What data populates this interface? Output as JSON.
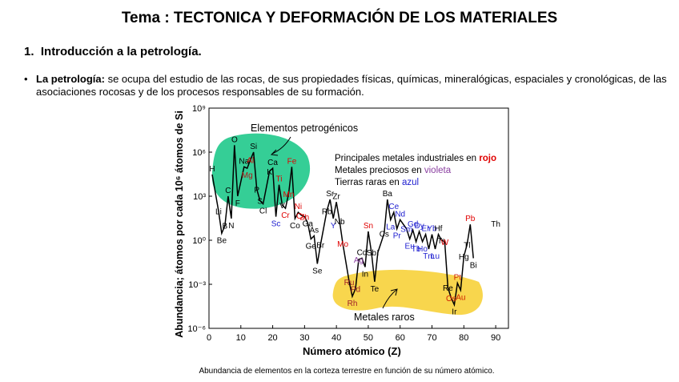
{
  "header": {
    "title": "Tema : TECTONICA Y DEFORMACIÓN DE LOS MATERIALES"
  },
  "section": {
    "number": "1.",
    "heading": "Introducción a la petrología."
  },
  "bullet": {
    "term": "La petrología:",
    "text": "se ocupa del estudio de las rocas, de sus propiedades físicas, químicas, mineralógicas, espaciales y cronológicas, de las asociaciones rocosas y de los procesos responsables de su formación."
  },
  "chart_data": {
    "type": "line",
    "x_label": "Número atómico (Z)",
    "y_label": "Abundancia; átomos por cada 10⁶ átomos de Si",
    "log_y": true,
    "xlim": [
      0,
      94
    ],
    "xticks": [
      0,
      10,
      20,
      30,
      40,
      50,
      60,
      70,
      80,
      90
    ],
    "ylim": [
      1e-06,
      1000000000.0
    ],
    "yticks": [
      {
        "value": 1e-06,
        "label": "10⁻⁶"
      },
      {
        "value": 0.001,
        "label": "10⁻³"
      },
      {
        "value": 1,
        "label": "10⁰"
      },
      {
        "value": 1000.0,
        "label": "10³"
      },
      {
        "value": 1000000.0,
        "label": "10⁶"
      },
      {
        "value": 1000000000.0,
        "label": "10⁹"
      }
    ],
    "line_color": "#000000",
    "x": [
      1,
      3,
      4,
      5,
      6,
      7,
      8,
      9,
      11,
      12,
      13,
      14,
      15,
      16,
      17,
      19,
      20,
      21,
      22,
      23,
      24,
      25,
      26,
      27,
      28,
      29,
      30,
      31,
      32,
      33,
      34,
      35,
      37,
      38,
      39,
      40,
      41,
      42,
      44,
      45,
      46,
      47,
      48,
      49,
      50,
      51,
      52,
      53,
      55,
      56,
      57,
      58,
      59,
      60,
      62,
      63,
      64,
      65,
      66,
      67,
      68,
      69,
      70,
      71,
      72,
      73,
      74,
      75,
      76,
      77,
      78,
      79,
      80,
      81,
      82,
      83,
      84,
      90
    ],
    "values": [
      30000.0,
      100,
      3,
      10,
      1000,
      30,
      3000000.0,
      1000,
      100000.0,
      80000.0,
      300000.0,
      1000000.0,
      3000,
      500,
      300,
      50000.0,
      80000.0,
      40,
      6000,
      250,
      150,
      1500,
      100000.0,
      30,
      80,
      50,
      40,
      15,
      1.2,
      2,
      0.025,
      0.5,
      100,
      600,
      30,
      400,
      20,
      0.6,
      0.0015,
      0.00015,
      0.0005,
      0.05,
      0.06,
      0.015,
      4,
      0.15,
      0.0015,
      0.15,
      3,
      600,
      25,
      80,
      6,
      25,
      6,
      1.2,
      5,
      0.8,
      4,
      0.8,
      2.5,
      0.25,
      2.5,
      0.25,
      2.5,
      1,
      0.8,
      0.0006,
      0.00012,
      4e-05,
      0.0012,
      0.0004,
      0.08,
      0.5,
      12,
      0.06,
      null,
      5
    ],
    "labels": [
      "H",
      "Li",
      "Be",
      "B",
      "C",
      "N",
      "O",
      "F",
      "Na",
      "Mg",
      "Al",
      "Si",
      "P",
      "S",
      "Cl",
      "K",
      "Ca",
      "Sc",
      "Ti",
      "V",
      "Cr",
      "Mn",
      "Fe",
      "Co",
      "Ni",
      "Cu",
      "Zn",
      "Ga",
      "Ge",
      "As",
      "Se",
      "Br",
      "Rb",
      "Sr",
      "Y",
      "Zr",
      "Nb",
      "Mo",
      "Ru",
      "Rh",
      "Pd",
      "Ag",
      "Cd",
      "In",
      "Sn",
      "Sb",
      "Te",
      "I",
      "Cs",
      "Ba",
      "La",
      "Ce",
      "Pr",
      "Nd",
      "Sm",
      "Eu",
      "Gd",
      "Tb",
      "Dy",
      "Ho",
      "Er",
      "Tm",
      "Yb",
      "Lu",
      "Hf",
      "Ta",
      "W",
      "Re",
      "Os",
      "Ir",
      "Pt",
      "Au",
      "Hg",
      "Tl",
      "Pb",
      "Bi",
      null,
      "Th"
    ],
    "label_colors": [
      "#000000",
      "#000000",
      "#000000",
      "#000000",
      "#000000",
      "#000000",
      "#000000",
      "#000000",
      "#000000",
      "#b01818",
      "#e00000",
      "#000000",
      "#000000",
      "#000000",
      "#000000",
      "#000000",
      "#000000",
      "#2020d0",
      "#e00000",
      "#000000",
      "#e00000",
      "#e00000",
      "#e00000",
      "#000000",
      "#e00000",
      "#e00000",
      "#e00000",
      "#000000",
      "#000000",
      "#000000",
      "#000000",
      "#000000",
      "#000000",
      "#000000",
      "#2020d0",
      "#000000",
      "#000000",
      "#e00000",
      "#a0202a",
      "#a0202a",
      "#a0202a",
      "#8a3fa0",
      "#000000",
      "#000000",
      "#e00000",
      "#000000",
      "#000000",
      "#000000",
      "#000000",
      "#000000",
      "#2020d0",
      "#2020d0",
      "#2020d0",
      "#2020d0",
      "#2020d0",
      "#2020d0",
      "#2020d0",
      "#2020d0",
      "#2020d0",
      "#2020d0",
      "#2020d0",
      "#2020d0",
      "#2020d0",
      "#2020d0",
      "#000000",
      "#000000",
      "#e00000",
      "#000000",
      "#d02000",
      "#000000",
      "#d02000",
      "#d02000",
      "#000000",
      "#000000",
      "#e00000",
      "#000000",
      null,
      "#000000"
    ],
    "annotations": {
      "petrogenic": "Elementos petrogénicos",
      "rare": "Metales raros",
      "legend": [
        {
          "text": "Principales metales industriales en ",
          "word": "rojo",
          "color": "#e00000"
        },
        {
          "text": "Metales preciosos en ",
          "word": "violeta",
          "color": "#8a3fa0"
        },
        {
          "text": "Tierras raras en ",
          "word": "azul",
          "color": "#2020d0"
        }
      ]
    },
    "caption": "Abundancia de elementos en la corteza terrestre en función de su número atómico."
  }
}
